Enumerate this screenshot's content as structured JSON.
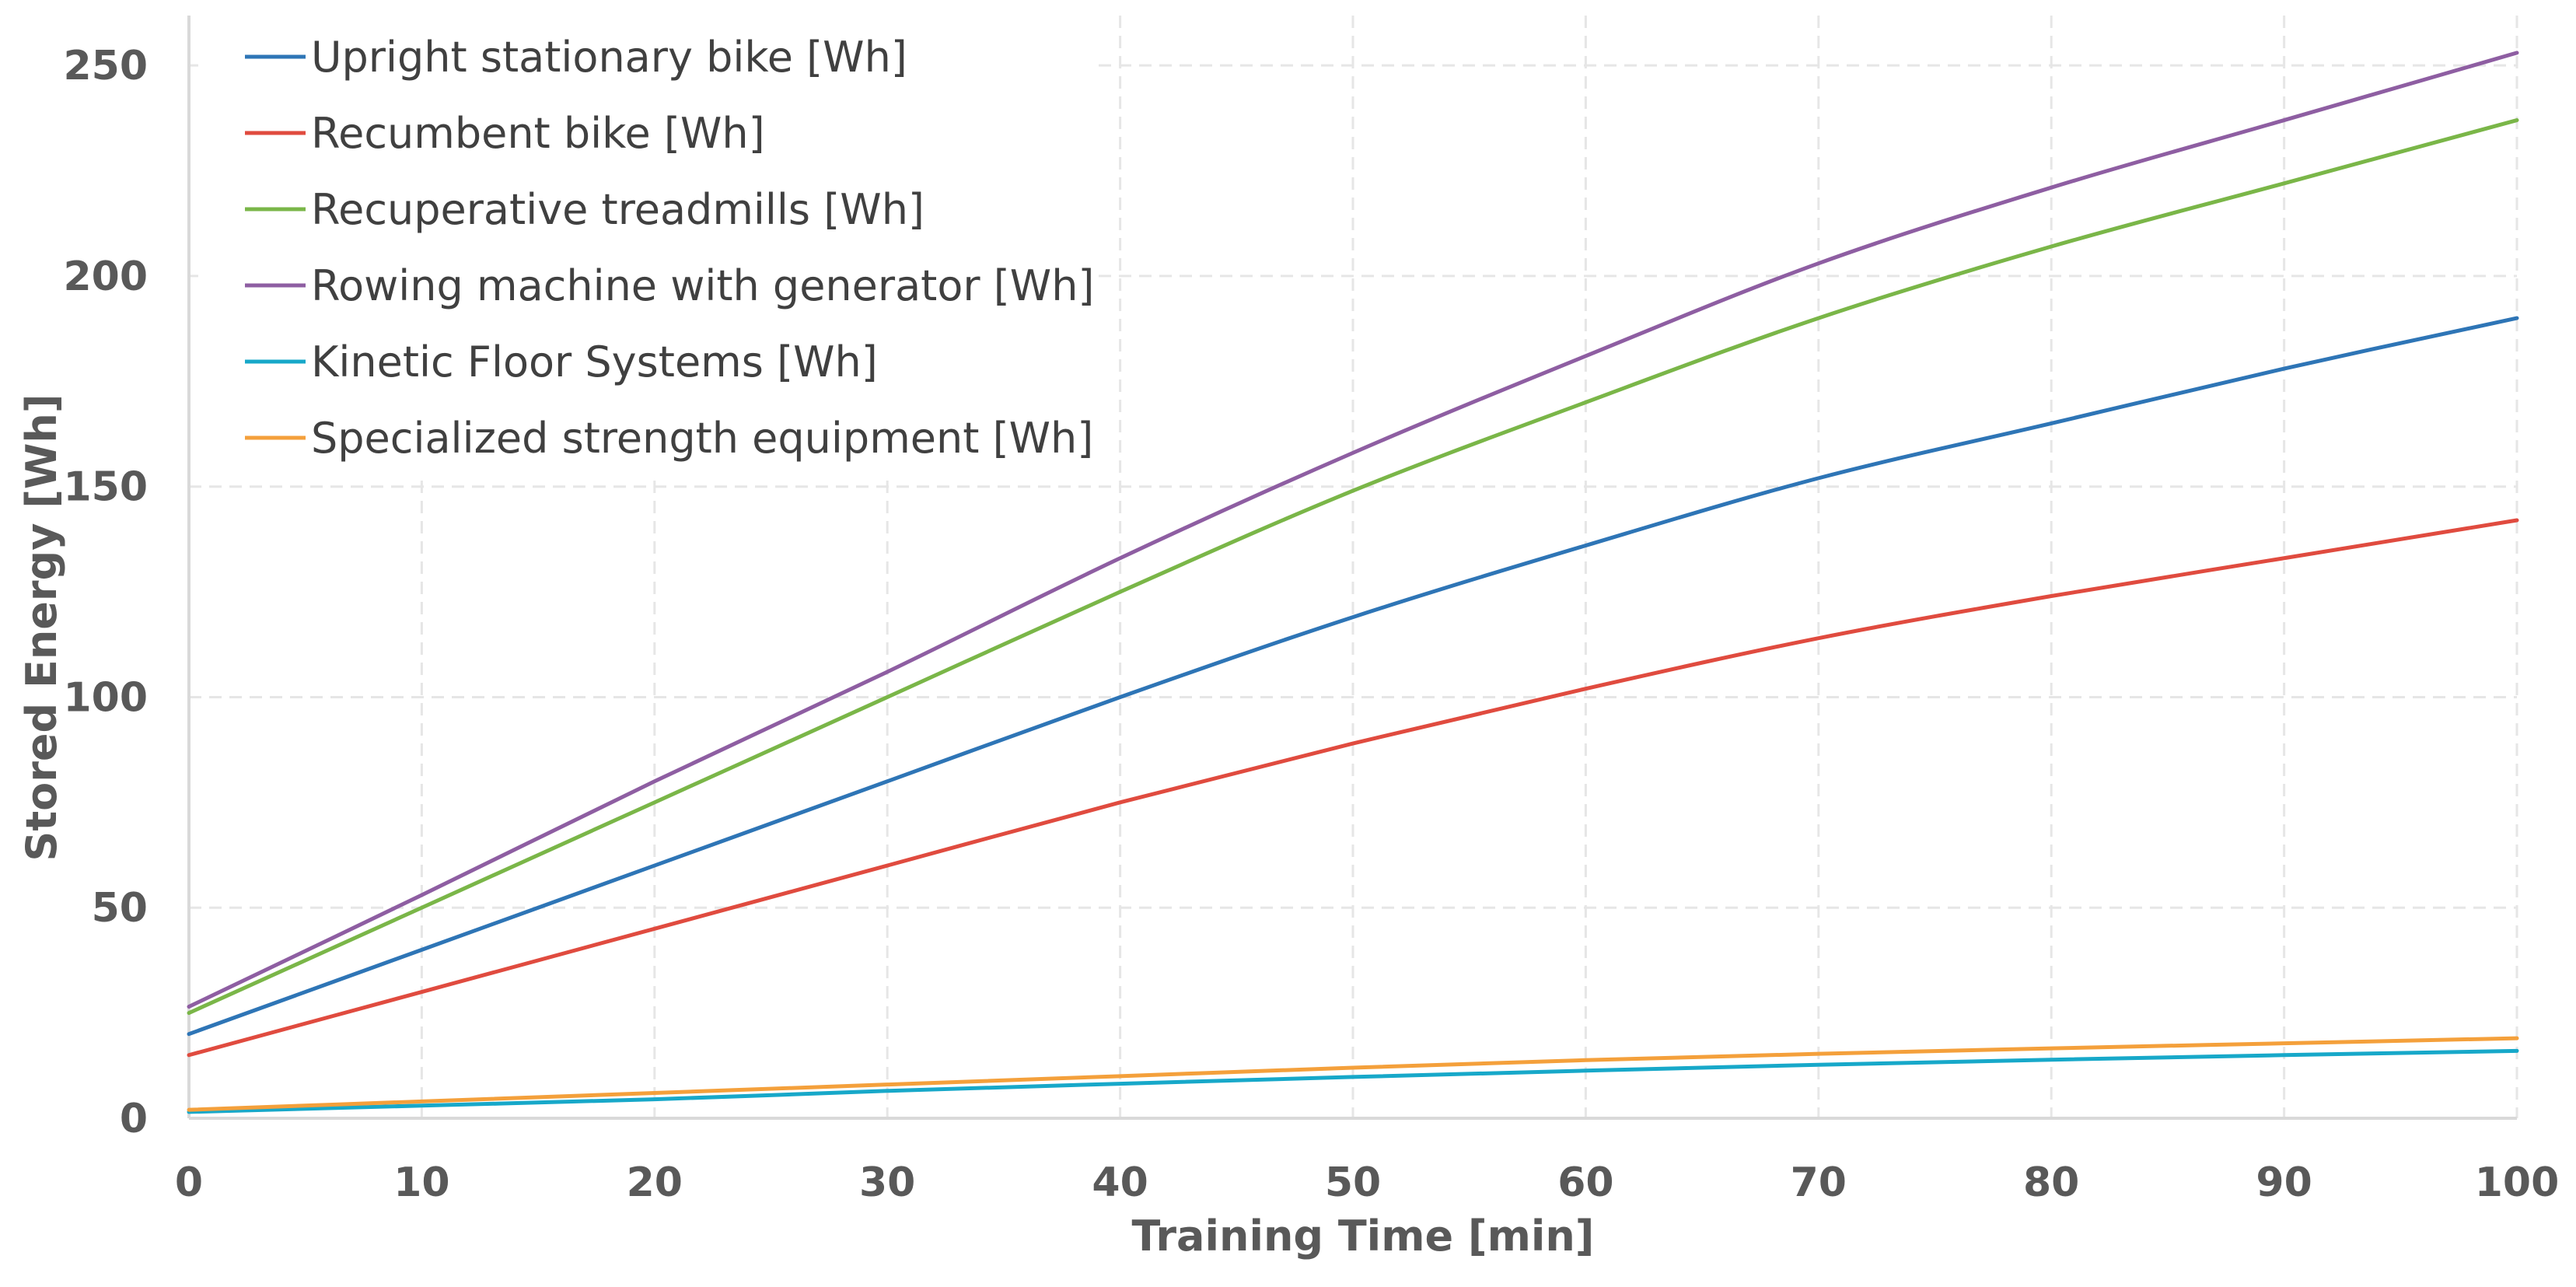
{
  "chart_data": {
    "type": "line",
    "title": "",
    "xlabel": "Training Time [min]",
    "ylabel": "Stored Energy [Wh]",
    "xlim": [
      0,
      100
    ],
    "ylim": [
      0,
      260
    ],
    "xticks": [
      0,
      10,
      20,
      30,
      40,
      50,
      60,
      70,
      80,
      90,
      100
    ],
    "yticks": [
      0,
      50,
      100,
      150,
      200,
      250
    ],
    "grid": true,
    "legend_position": "top-left",
    "x": [
      0,
      10,
      20,
      30,
      40,
      50,
      60,
      70,
      80,
      90,
      100
    ],
    "series": [
      {
        "name": "Upright stationary bike [Wh]",
        "color": "#2e75b6",
        "values": [
          20,
          40,
          60,
          80,
          100,
          119,
          136,
          152,
          165,
          178,
          190
        ]
      },
      {
        "name": "Recumbent bike [Wh]",
        "color": "#e04b3f",
        "values": [
          15,
          30,
          45,
          60,
          75,
          89,
          102,
          114,
          124,
          133,
          142
        ]
      },
      {
        "name": "Recuperative treadmills [Wh]",
        "color": "#7ab648",
        "values": [
          25,
          50,
          75,
          100,
          125,
          149,
          170,
          190,
          207,
          222,
          237
        ]
      },
      {
        "name": "Rowing machine with generator [Wh]",
        "color": "#8e5ea2",
        "values": [
          26.5,
          53,
          80,
          106,
          133,
          158,
          181,
          203,
          221,
          237,
          253
        ]
      },
      {
        "name": "Kinetic Floor Systems [Wh]",
        "color": "#17a8c9",
        "values": [
          1.5,
          3,
          4.5,
          6.5,
          8.2,
          9.8,
          11.3,
          12.7,
          13.9,
          15,
          16
        ]
      },
      {
        "name": "Specialized strength equipment [Wh]",
        "color": "#f4a03b",
        "values": [
          2,
          4,
          6,
          8,
          10,
          12,
          13.8,
          15.3,
          16.6,
          17.8,
          19
        ]
      }
    ]
  }
}
